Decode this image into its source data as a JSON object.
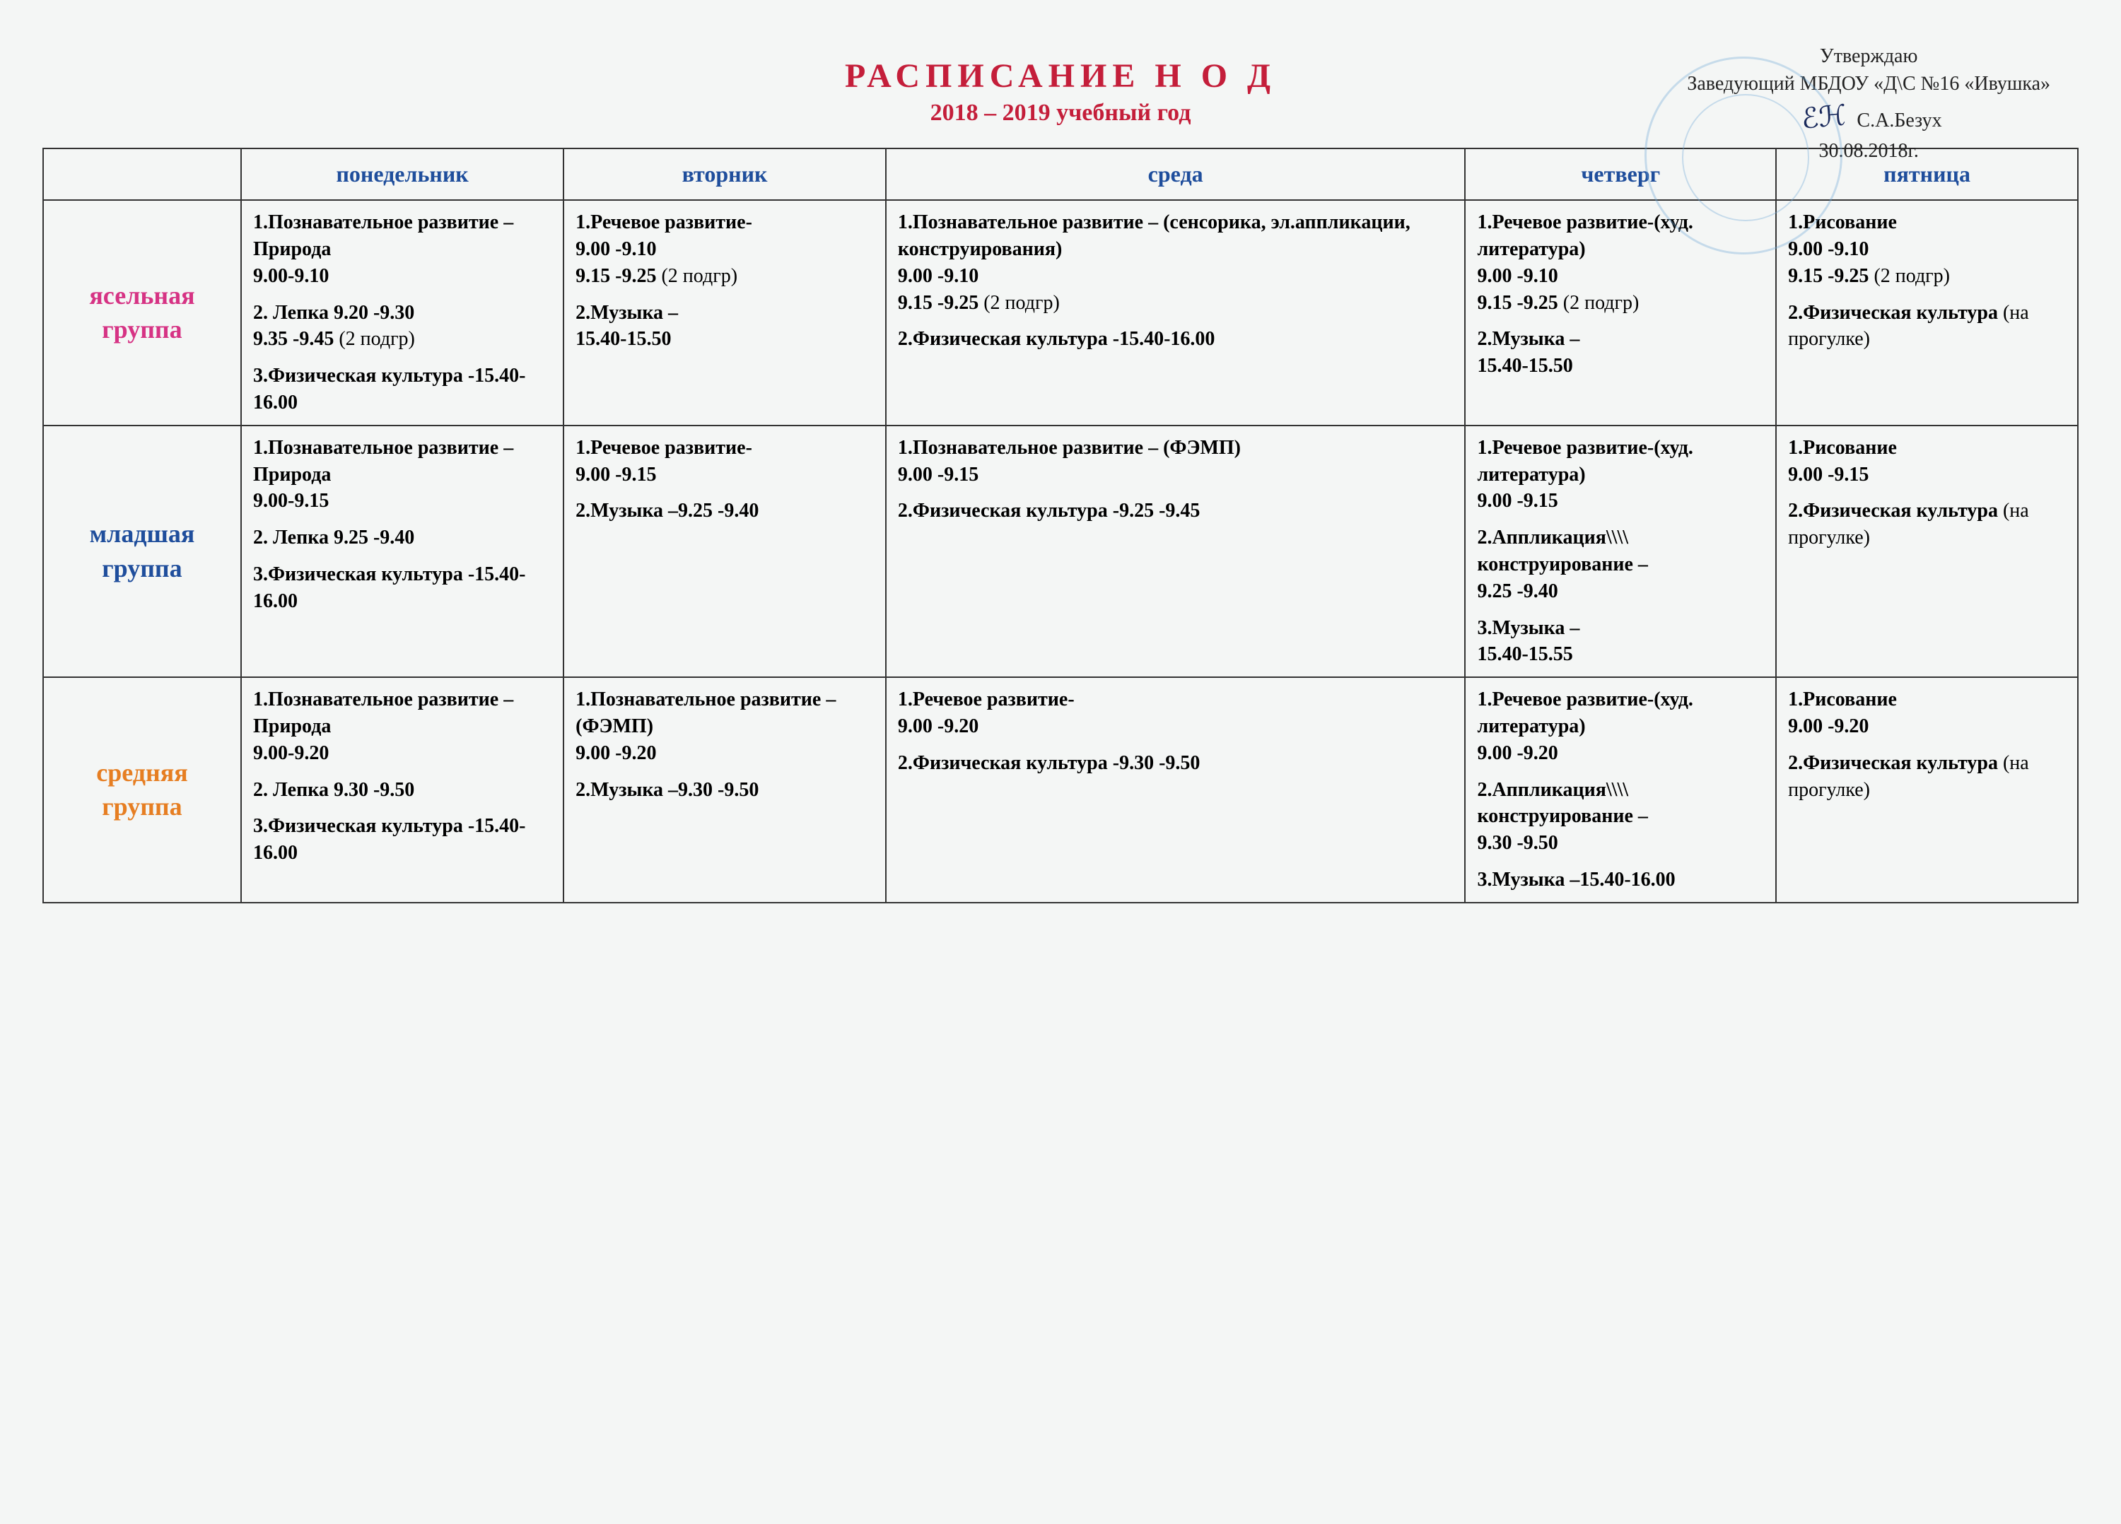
{
  "approval": {
    "line1": "Утверждаю",
    "line2": "Заведующий МБДОУ «Д\\С №16 «Ивушка»",
    "name": "С.А.Безух",
    "date": "30.08.2018г."
  },
  "title": "РАСПИСАНИЕ   Н О Д",
  "subtitle": "2018 – 2019  учебный год",
  "headers": {
    "mon": "понедельник",
    "tue": "вторник",
    "wed": "среда",
    "thu": "четверг",
    "fri": "пятница"
  },
  "groups": {
    "g1": {
      "label": "ясельная группа",
      "color": "#d63384"
    },
    "g2": {
      "label": "младшая группа",
      "color": "#1f4e9c"
    },
    "g3": {
      "label": "средняя группа",
      "color": "#e67e22"
    }
  },
  "schedule": {
    "g1": {
      "mon": [
        {
          "b": "1.Познавательное развитие – Природа",
          "t": "9.00-9.10"
        },
        {
          "b": "2. Лепка  9.20 -9.30",
          "t": "9.35 -9.45",
          "aux": "(2 подгр)"
        },
        {
          "b": "3.Физическая культура -15.40-16.00"
        }
      ],
      "tue": [
        {
          "b": "1.Речевое развитие-",
          "t": "9.00 -9.10",
          "t2": "9.15 -9.25 (2 подгр)"
        },
        {
          "b": "2.Музыка – ",
          "t": "15.40-15.50"
        }
      ],
      "wed": [
        {
          "b": "1.Познавательное развитие – (сенсорика, эл.аппликации, конструирования)",
          "t": "9.00 -9.10",
          "t2": "9.15 -9.25 (2 подгр)"
        },
        {
          "b": "2.Физическая культура -15.40-16.00"
        }
      ],
      "thu": [
        {
          "b": "1.Речевое развитие-(худ. литература)",
          "t": "9.00 -9.10",
          "t2": "9.15 -9.25 (2 подгр)"
        },
        {
          "b": "2.Музыка –",
          "t": "15.40-15.50"
        }
      ],
      "fri": [
        {
          "b": "1.Рисование",
          "t": "9.00 -9.10",
          "t2": "9.15 -9.25 (2 подгр)"
        },
        {
          "b": "2.Физическая культура",
          "aux": "(на прогулке)"
        }
      ]
    },
    "g2": {
      "mon": [
        {
          "b": "1.Познавательное развитие – Природа",
          "t": "9.00-9.15"
        },
        {
          "b": "2. Лепка  9.25 -9.40"
        },
        {
          "b": "3.Физическая культура -15.40-16.00"
        }
      ],
      "tue": [
        {
          "b": "1.Речевое развитие-",
          "t": "9.00 -9.15"
        },
        {
          "b": "2.Музыка –9.25 -9.40"
        }
      ],
      "wed": [
        {
          "b": "1.Познавательное развитие – (ФЭМП)",
          "t": "9.00 -9.15"
        },
        {
          "b": "2.Физическая культура -9.25 -9.45"
        }
      ],
      "thu": [
        {
          "b": "1.Речевое развитие-(худ. литература)",
          "t": "9.00 -9.15"
        },
        {
          "b": "2.Аппликация\\\\\\\\ конструирование –",
          "t": "9.25 -9.40"
        },
        {
          "b": "3.Музыка –",
          "t": "15.40-15.55"
        }
      ],
      "fri": [
        {
          "b": "1.Рисование",
          "t": "9.00 -9.15"
        },
        {
          "b": "2.Физическая культура",
          "aux": "(на прогулке)"
        }
      ]
    },
    "g3": {
      "mon": [
        {
          "b": "1.Познавательное развитие – Природа",
          "t": "9.00-9.20"
        },
        {
          "b": "2. Лепка  9.30 -9.50"
        },
        {
          "b": "3.Физическая культура -15.40-16.00"
        }
      ],
      "tue": [
        {
          "b": "1.Познавательное развитие – (ФЭМП)",
          "t": "9.00 -9.20"
        },
        {
          "b": "2.Музыка –9.30 -9.50"
        }
      ],
      "wed": [
        {
          "b": "1.Речевое развитие-",
          "t": "9.00 -9.20"
        },
        {
          "b": "2.Физическая культура -9.30 -9.50"
        }
      ],
      "thu": [
        {
          "b": "1.Речевое развитие-(худ. литература)",
          "t": "9.00 -9.20"
        },
        {
          "b": "2.Аппликация\\\\\\\\ конструирование –",
          "t": "9.30 -9.50"
        },
        {
          "b": "3.Музыка –15.40-16.00"
        }
      ],
      "fri": [
        {
          "b": "1.Рисование",
          "t": "9.00 -9.20"
        },
        {
          "b": "2.Физическая культура",
          "aux": "(на прогулке)"
        }
      ]
    }
  },
  "styling": {
    "title_color": "#c41e3a",
    "header_color": "#1f4e9c",
    "border_color": "#333333",
    "background": "#f4f6f5",
    "stamp_color": "#6fa8d6",
    "title_fontsize": 48,
    "subtitle_fontsize": 34,
    "header_fontsize": 32,
    "cell_fontsize": 28,
    "group_label_fontsize": 36,
    "columns": [
      "group",
      "mon",
      "tue",
      "wed",
      "thu",
      "fri"
    ]
  }
}
